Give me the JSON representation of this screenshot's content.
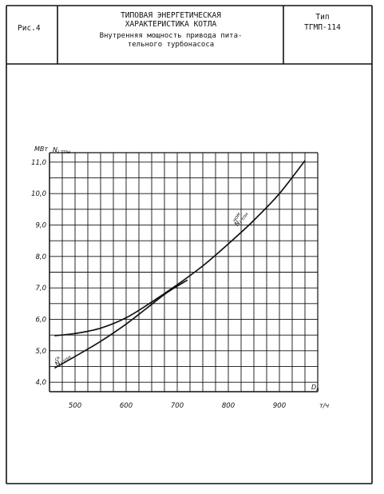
{
  "header": {
    "fig_label": "Рис.4",
    "title_line1": "ТИПОВАЯ ЭНЕРГЕТИЧЕСКАЯ",
    "title_line2": "ХАРАКТЕРИСТИКА КОТЛА",
    "subtitle_line1": "Внутренняя мощность привода пита-",
    "subtitle_line2": "тельного турбонасоса",
    "type_label": "Тип",
    "type_value": "ТГМП-114"
  },
  "chart_data": {
    "type": "line",
    "ylabel_unit": "МВт",
    "ylabel_symbol": "N",
    "ylabel_sub": "i тпн",
    "xlabel_symbol": "D",
    "xlabel_sub": "к",
    "xlabel_unit": "т/ч",
    "xlim": [
      450,
      975
    ],
    "ylim": [
      3.7,
      11.3
    ],
    "x_ticks": [
      500,
      600,
      700,
      800,
      900
    ],
    "x_tick_labels": [
      "500",
      "600",
      "700",
      "800",
      "900"
    ],
    "y_ticks": [
      4.0,
      5.0,
      6.0,
      7.0,
      8.0,
      9.0,
      10.0,
      11.0
    ],
    "y_tick_labels": [
      "4,0",
      "5,0",
      "6,0",
      "7,0",
      "8,0",
      "9,0",
      "10,0",
      "11,0"
    ],
    "grid": true,
    "series": [
      {
        "name": "N i тпн ск",
        "label_main": "N",
        "label_sub": "i тпн",
        "label_sup": "ск",
        "x": [
          460,
          500,
          550,
          600,
          640,
          680,
          720
        ],
        "y": [
          4.45,
          4.82,
          5.3,
          5.85,
          6.35,
          6.85,
          7.25
        ]
      },
      {
        "name": "N i тпн ном",
        "label_main": "N",
        "label_sub": "i тпн",
        "label_sup": "ном",
        "x": [
          460,
          500,
          550,
          600,
          650,
          700,
          750,
          800,
          850,
          900,
          950
        ],
        "y": [
          5.48,
          5.55,
          5.72,
          6.05,
          6.55,
          7.1,
          7.7,
          8.4,
          9.15,
          10.0,
          11.05
        ]
      }
    ]
  }
}
